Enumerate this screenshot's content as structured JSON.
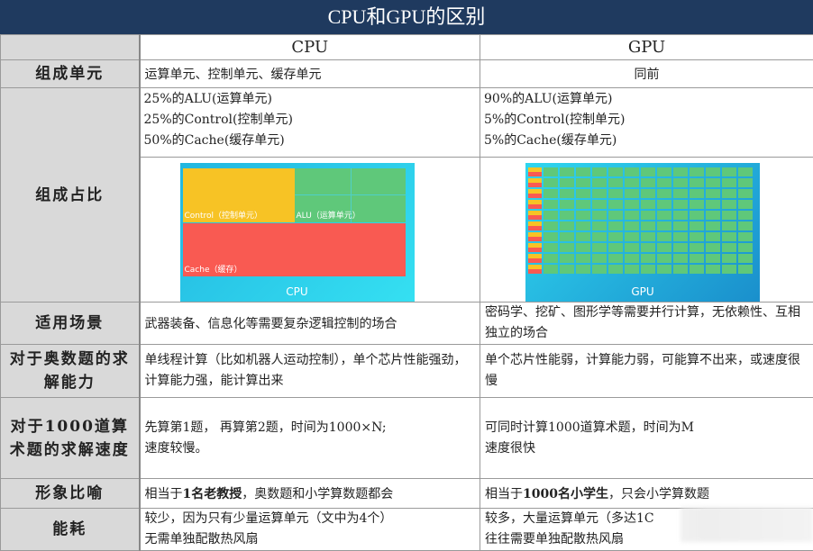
{
  "title": "CPU和GPU的区别",
  "header": {
    "cpu": "CPU",
    "gpu": "GPU"
  },
  "rows": {
    "units": {
      "label": "组成单元",
      "cpu": "运算单元、控制单元、缓存单元",
      "gpu": "同前"
    },
    "ratio": {
      "label": "组成占比",
      "cpu": [
        "25%的ALU(运算单元)",
        "25%的Control(控制单元)",
        "50%的Cache(缓存单元)"
      ],
      "gpu": [
        "90%的ALU(运算单元)",
        "5%的Control(控制单元)",
        "5%的Cache(缓存单元)"
      ],
      "cpu_diagram": {
        "control": "Control（控制单元）",
        "alu": "ALU（运算单元）",
        "cache": "Cache（缓存）",
        "caption": "CPU"
      },
      "gpu_diagram": {
        "caption": "GPU"
      },
      "colors": {
        "control": "#f7c325",
        "alu": "#5fc87a",
        "cache": "#f95a52"
      }
    },
    "scenario": {
      "label": "适用场景",
      "cpu": "武器装备、信息化等需要复杂逻辑控制的场合",
      "gpu": "密码学、挖矿、图形学等需要并行计算，无依赖性、互相独立的场合"
    },
    "olympiad": {
      "label": "对于奥数题的求解能力",
      "cpu": "单线程计算（比如机器人运动控制），单个芯片性能强劲，计算能力强，能计算出来",
      "gpu": "单个芯片性能弱，计算能力弱，可能算不出来，或速度很慢"
    },
    "speed": {
      "label": "对于1000道算术题的求解速度",
      "cpu": [
        "先算第1题， 再算第2题，时间为1000×N;",
        "速度较慢。"
      ],
      "gpu": [
        "可同时计算1000道算术题，时间为M",
        "速度很快"
      ]
    },
    "metaphor": {
      "label": "形象比喻",
      "cpu_pre": "相当于",
      "cpu_bold": "1名老教授",
      "cpu_post": "，奥数题和小学算数题都会",
      "gpu_pre": "相当于",
      "gpu_bold": "1000名小学生",
      "gpu_post": "，只会小学算数题"
    },
    "power": {
      "label": "能耗",
      "cpu": [
        "较少，因为只有少量运算单元（文中为4个）",
        "无需单独配散热风扇"
      ],
      "gpu": [
        "较多，大量运算单元（多达1C",
        "往往需要单独配散热风扇"
      ]
    }
  }
}
